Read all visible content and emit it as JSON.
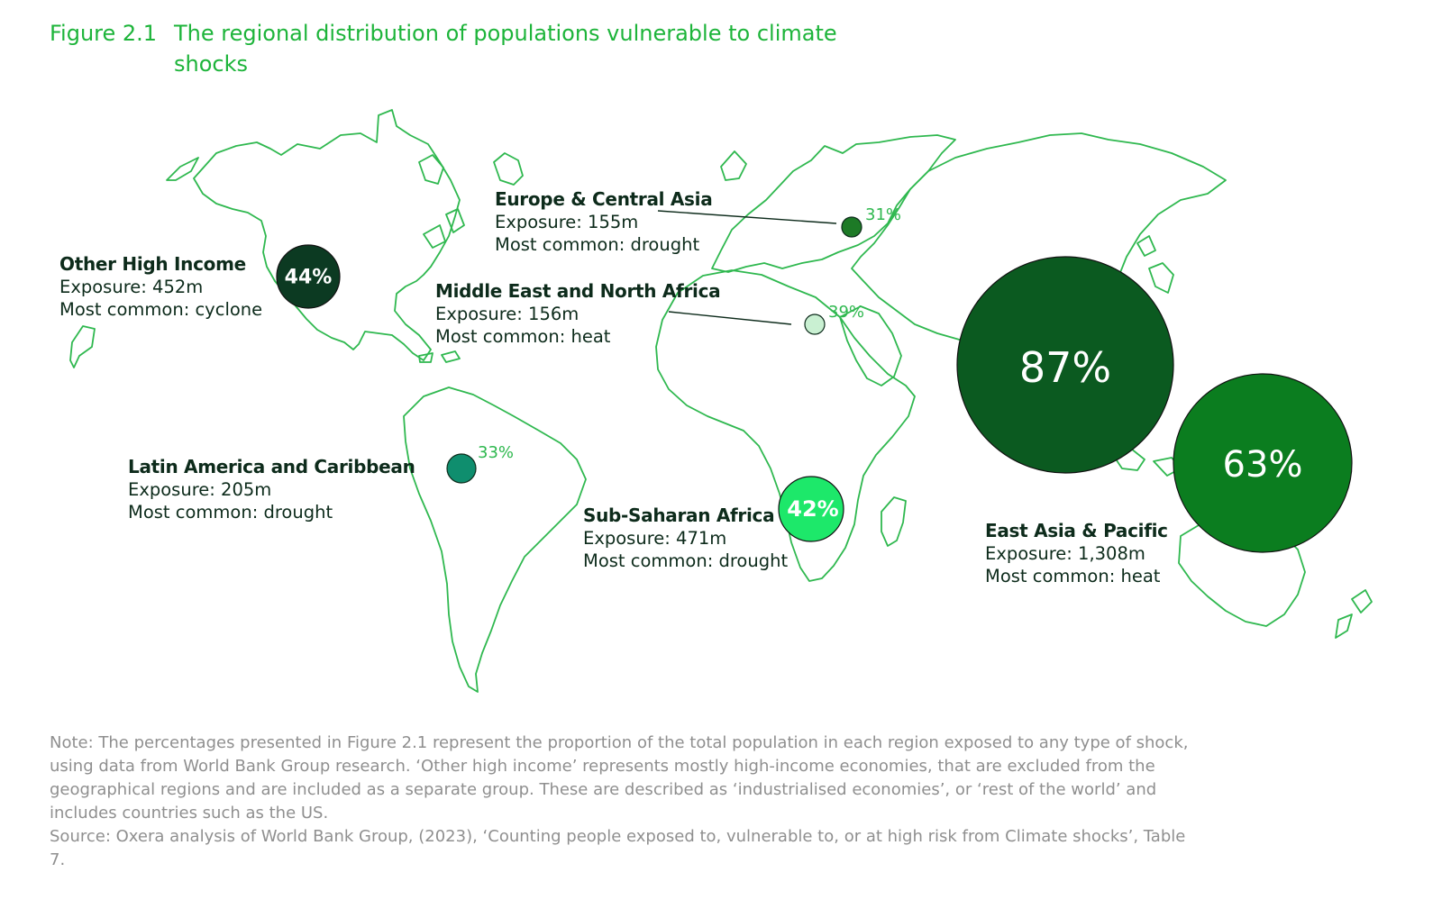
{
  "figure": {
    "number": "Figure 2.1",
    "title": "The regional distribution of populations vulnerable to climate shocks"
  },
  "regions": [
    {
      "name": "Other High Income",
      "exposure": "Exposure: 452m",
      "common": "Most common: cyclone",
      "share_label": "44%",
      "share": 44,
      "color": "#0c3a22",
      "style": "filled"
    },
    {
      "name": "Europe & Central Asia",
      "exposure": "Exposure: 155m",
      "common": "Most common: drought",
      "share_label": "31%",
      "share": 31,
      "color": "#1d7a26",
      "style": "dot"
    },
    {
      "name": "Middle East and North Africa",
      "exposure": "Exposure: 156m",
      "common": "Most common: heat",
      "share_label": "39%",
      "share": 39,
      "color": "#c9f0d2",
      "style": "dot"
    },
    {
      "name": "Latin America and Caribbean",
      "exposure": "Exposure: 205m",
      "common": "Most common: drought",
      "share_label": "33%",
      "share": 33,
      "color": "#0f8e6e",
      "style": "dot"
    },
    {
      "name": "Sub-Saharan Africa",
      "exposure": "Exposure: 471m",
      "common": "Most common: drought",
      "share_label": "42%",
      "share": 42,
      "color": "#1de86a",
      "style": "filled"
    },
    {
      "name": "East Asia & Pacific",
      "exposure": "Exposure: 1,308m",
      "common": "Most common: heat",
      "share_label": "87%",
      "share": 87,
      "color": "#0b5a20",
      "style": "filled"
    },
    {
      "name": "",
      "exposure": "",
      "common": "",
      "share_label": "63%",
      "share": 63,
      "color": "#0b7d1f",
      "style": "filled"
    }
  ],
  "note": "Note: The percentages presented in Figure 2.1 represent the proportion of the total population in each region exposed to any type of shock, using data from World Bank Group research. ‘Other high income’ represents mostly high-income economies, that are excluded from the geographical regions and are included as a separate group. These are described as ‘industrialised economies’, or ‘rest of the world’ and includes countries such as the US.",
  "source": "Source: Oxera analysis of World Bank Group, (2023), ‘Counting people exposed to, vulnerable to, or at high risk from Climate shocks’, Table 7.",
  "colors": {
    "accent": "#1db43a",
    "map_line": "#2fb84f",
    "text": "#0d2b1b",
    "note": "#8f8f8f"
  }
}
